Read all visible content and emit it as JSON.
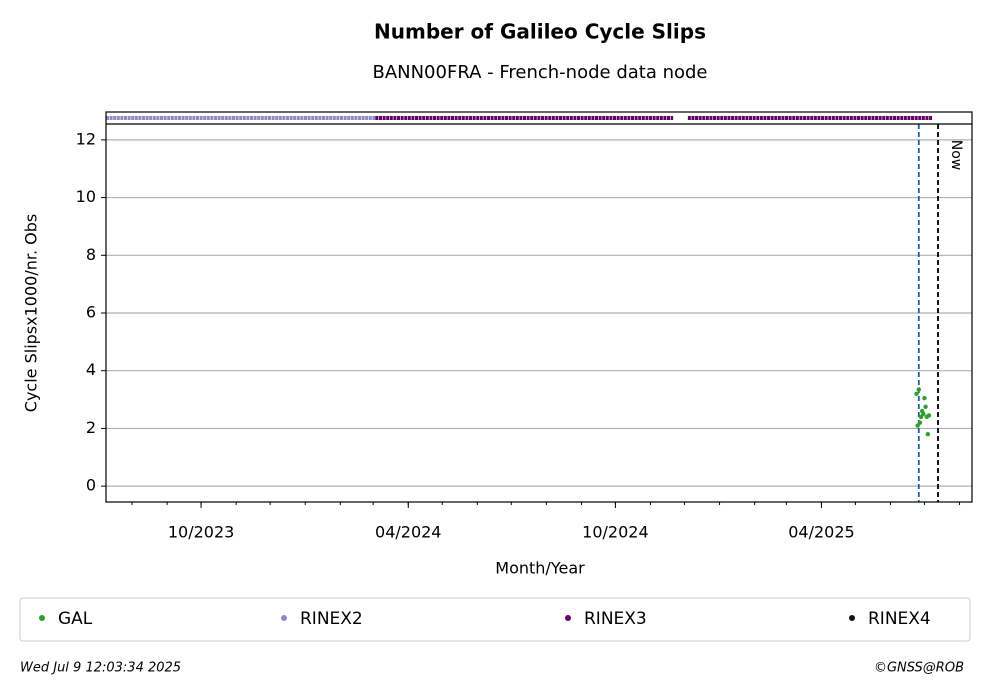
{
  "chart_data": {
    "type": "scatter",
    "title": "Number of Galileo Cycle Slips",
    "subtitle": "BANN00FRA - French-node data node",
    "x_label": "Month/Year",
    "y_label": "Cycle Slipsx1000/nr. Obs",
    "xlim": [
      "2023-07-09",
      "2025-08-12"
    ],
    "xticks": [
      {
        "value": "2023-10-01",
        "label": "10/2023"
      },
      {
        "value": "2024-04-01",
        "label": "04/2024"
      },
      {
        "value": "2024-10-01",
        "label": "10/2024"
      },
      {
        "value": "2025-04-01",
        "label": "04/2025"
      }
    ],
    "ylim": [
      -0.55,
      12.55
    ],
    "yticks": [
      0,
      2,
      4,
      6,
      8,
      10,
      12
    ],
    "grid": true,
    "series": [
      {
        "name": "GAL",
        "color": "#2ca02c",
        "x": [
          "2025-06-24",
          "2025-06-25",
          "2025-06-26",
          "2025-06-27",
          "2025-06-28",
          "2025-06-29",
          "2025-06-30",
          "2025-07-01",
          "2025-07-02",
          "2025-07-03",
          "2025-07-04",
          "2025-07-05"
        ],
        "values": [
          3.2,
          2.1,
          3.35,
          2.2,
          2.4,
          2.6,
          2.5,
          3.05,
          2.75,
          2.4,
          1.8,
          2.45
        ]
      }
    ],
    "availability": [
      {
        "name": "RINEX2",
        "color": "#8c89c4",
        "ranges": [
          [
            "2023-07-09",
            "2024-03-03"
          ]
        ]
      },
      {
        "name": "RINEX3",
        "color": "#660066",
        "ranges": [
          [
            "2024-03-03",
            "2024-11-21"
          ],
          [
            "2024-12-04",
            "2025-07-08"
          ]
        ]
      },
      {
        "name": "RINEX4",
        "color": "#1e0a1e",
        "ranges": []
      }
    ],
    "vlines": [
      {
        "x": "2025-06-26",
        "color": "#1f5f9f"
      },
      {
        "x": "2025-07-13",
        "color": "#000000",
        "label": "Now"
      }
    ],
    "timestamp": "Wed Jul  9 12:03:34 2025",
    "credit": "©GNSS@ROB"
  }
}
